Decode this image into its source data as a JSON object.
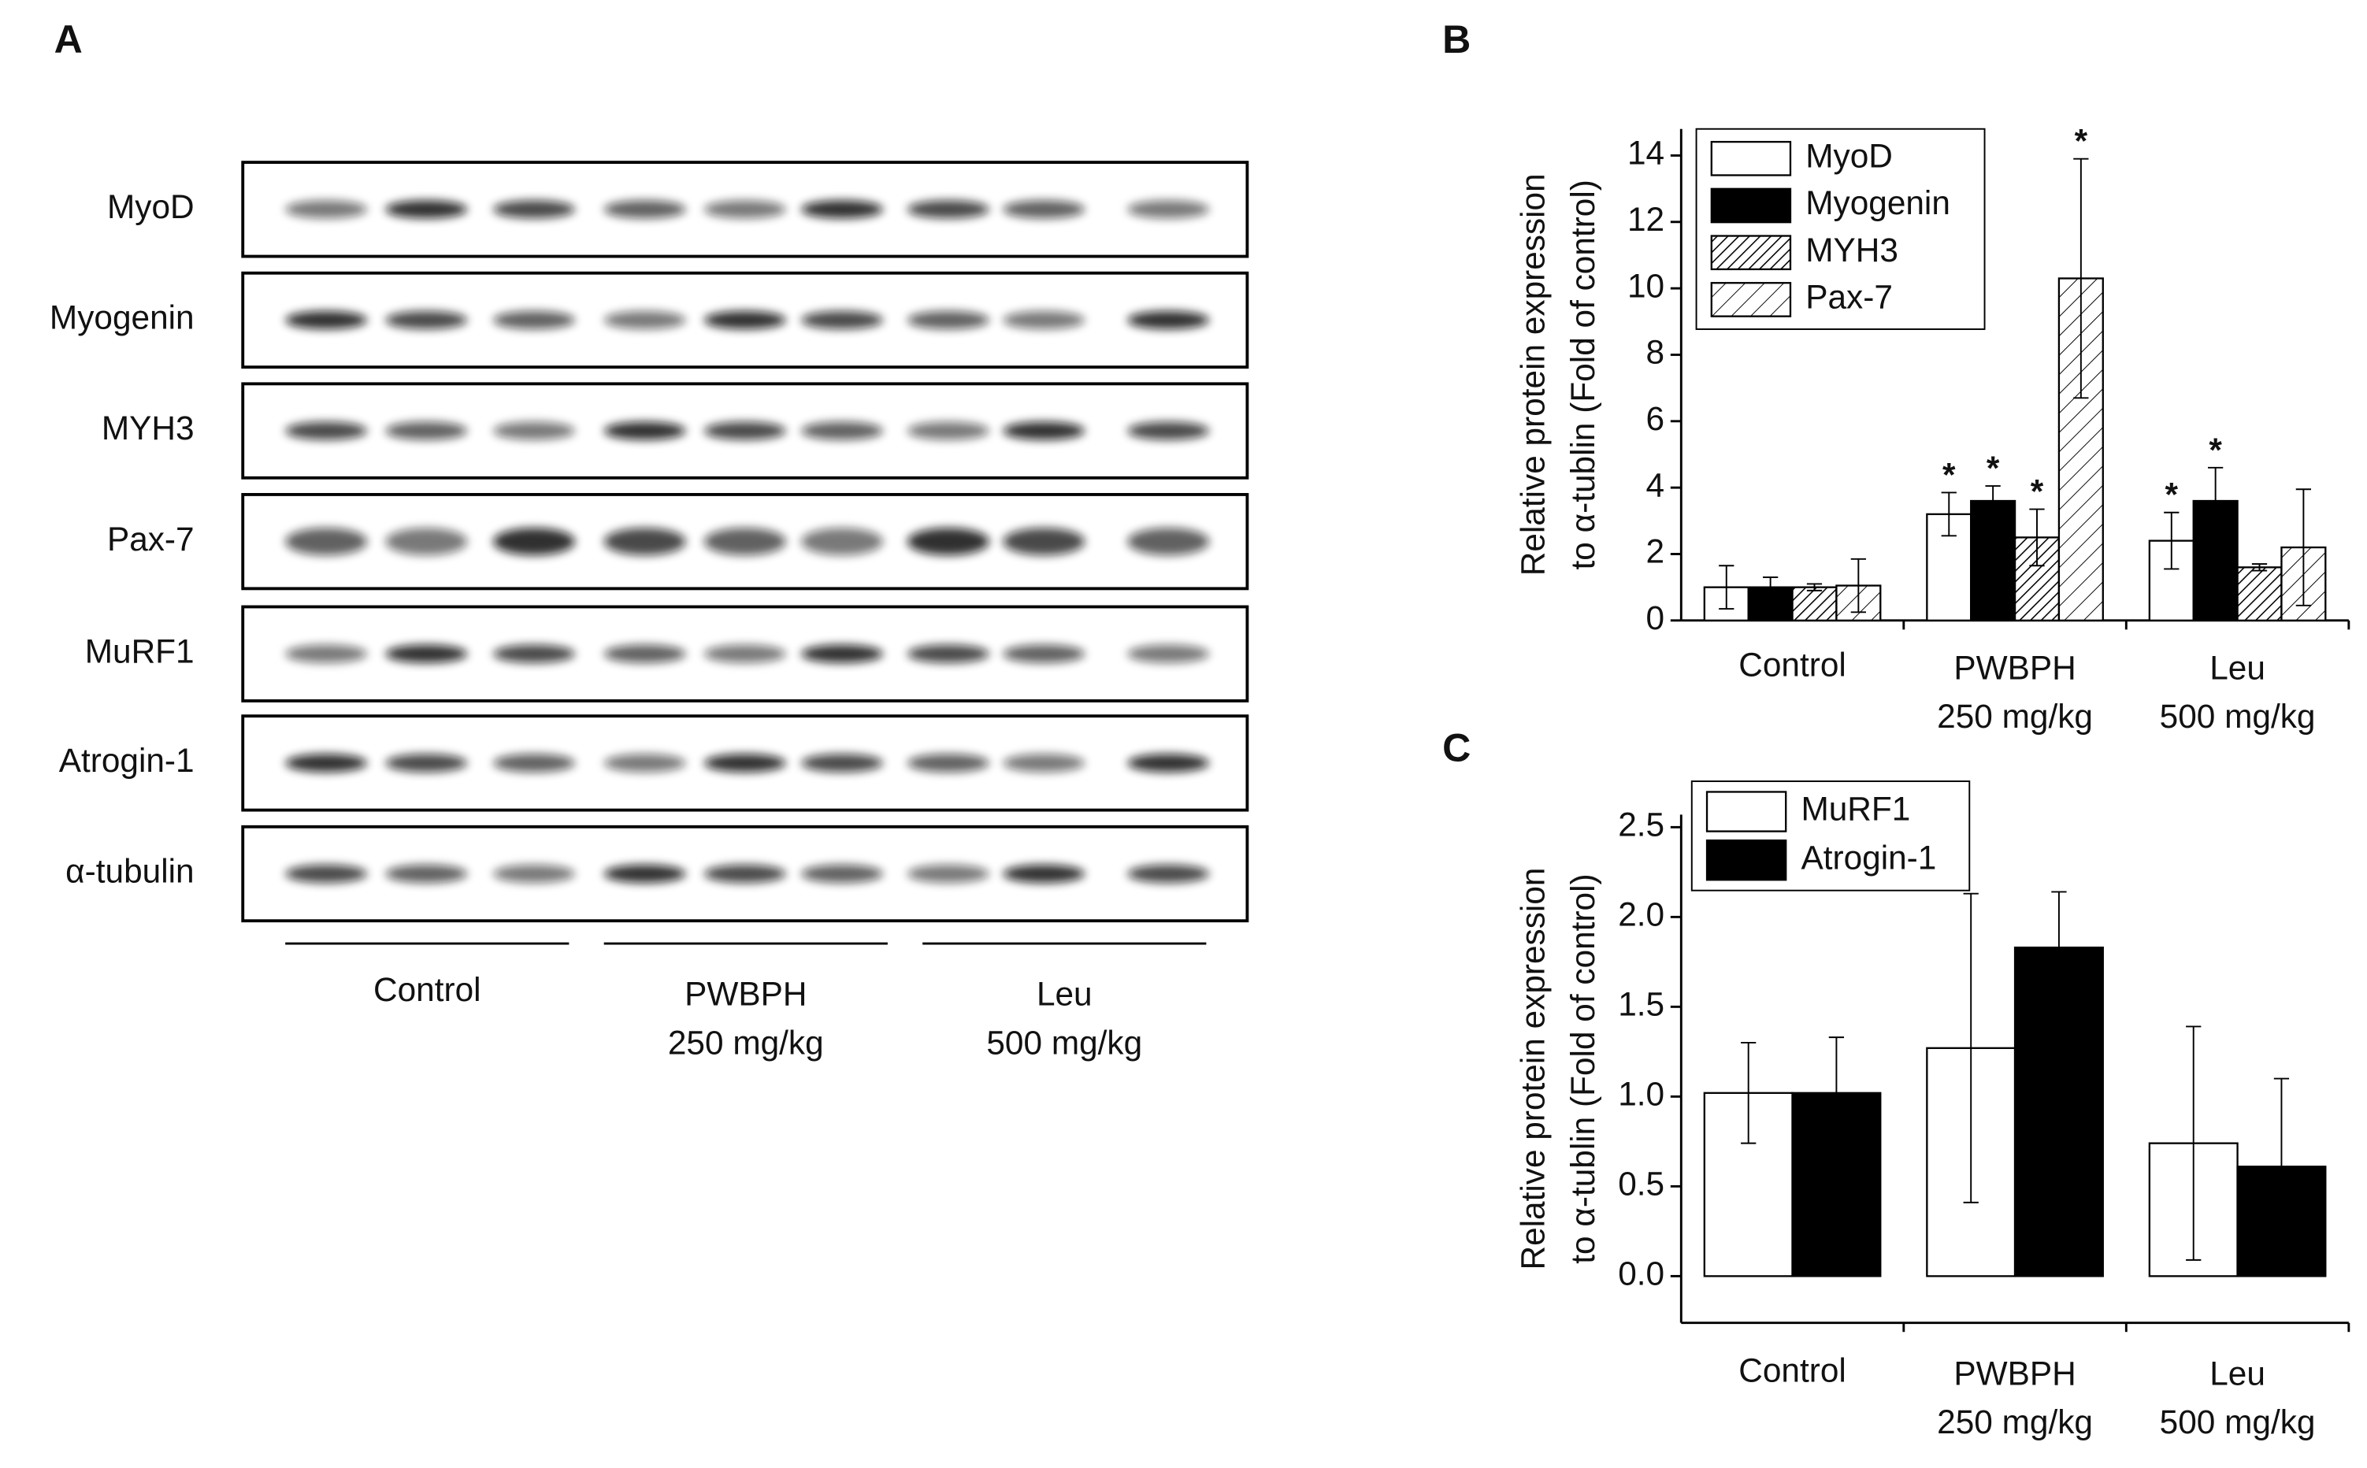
{
  "blot": {
    "panel": "A",
    "rows": [
      "MyoD",
      "Myogenin",
      "MYH3",
      "Pax-7",
      "MuRF1",
      "Atrogin-1",
      "α-tubulin"
    ],
    "groups": [
      [
        "Control"
      ],
      [
        "PWBPH",
        "250 mg/kg"
      ],
      [
        "Leu",
        "500 mg/kg"
      ]
    ]
  },
  "chart_data": [
    {
      "type": "bar",
      "panel": "B",
      "ylabel": [
        "Relative protein expression",
        "to α-tublin (Fold of control)"
      ],
      "categories": [
        [
          "Control"
        ],
        [
          "PWBPH",
          "250 mg/kg"
        ],
        [
          "Leu",
          "500 mg/kg"
        ]
      ],
      "ylim": [
        0,
        14.8
      ],
      "yticks": [
        0,
        2,
        4,
        6,
        8,
        10,
        12,
        14
      ],
      "legend": "top-left",
      "series": [
        {
          "name": "MyoD",
          "color": "#ffffff",
          "pattern": "solid",
          "values": [
            1.0,
            3.2,
            2.4
          ],
          "errors": [
            0.65,
            0.65,
            0.85
          ],
          "annotations": [
            null,
            "*",
            "*"
          ]
        },
        {
          "name": "Myogenin",
          "color": "#000000",
          "pattern": "solid",
          "values": [
            1.0,
            3.6,
            3.6
          ],
          "errors": [
            0.3,
            0.45,
            1.0
          ],
          "annotations": [
            null,
            "*",
            "*"
          ]
        },
        {
          "name": "MYH3",
          "color": "#000000",
          "pattern": "dense-hatch",
          "values": [
            1.0,
            2.5,
            1.6
          ],
          "errors": [
            0.1,
            0.85,
            0.1
          ],
          "annotations": [
            null,
            "*",
            null
          ]
        },
        {
          "name": "Pax-7",
          "color": "#000000",
          "pattern": "hatch",
          "values": [
            1.05,
            10.3,
            2.2
          ],
          "errors": [
            0.8,
            3.6,
            1.75
          ],
          "annotations": [
            null,
            "*",
            null
          ]
        }
      ]
    },
    {
      "type": "bar",
      "panel": "C",
      "ylabel": [
        "Relative protein expression",
        "to α-tublin (Fold of control)"
      ],
      "categories": [
        [
          "Control"
        ],
        [
          "PWBPH",
          "250 mg/kg"
        ],
        [
          "Leu",
          "500 mg/kg"
        ]
      ],
      "ylim": [
        -0.26,
        2.57
      ],
      "yticks": [
        {
          "value": 0,
          "label": "0.0"
        },
        {
          "value": 0.5,
          "label": "0.5"
        },
        {
          "value": 1,
          "label": "1.0"
        },
        {
          "value": 1.5,
          "label": "1.5"
        },
        {
          "value": 2,
          "label": "2.0"
        },
        {
          "value": 2.5,
          "label": "2.5"
        }
      ],
      "legend": "top-left",
      "series": [
        {
          "name": "MuRF1",
          "color": "#ffffff",
          "pattern": "solid",
          "values": [
            1.02,
            1.27,
            0.74
          ],
          "errors": [
            0.28,
            0.86,
            0.65
          ]
        },
        {
          "name": "Atrogin-1",
          "color": "#000000",
          "pattern": "solid",
          "values": [
            1.02,
            1.83,
            0.61
          ],
          "errors": [
            0.31,
            0.31,
            0.49
          ]
        }
      ]
    }
  ]
}
